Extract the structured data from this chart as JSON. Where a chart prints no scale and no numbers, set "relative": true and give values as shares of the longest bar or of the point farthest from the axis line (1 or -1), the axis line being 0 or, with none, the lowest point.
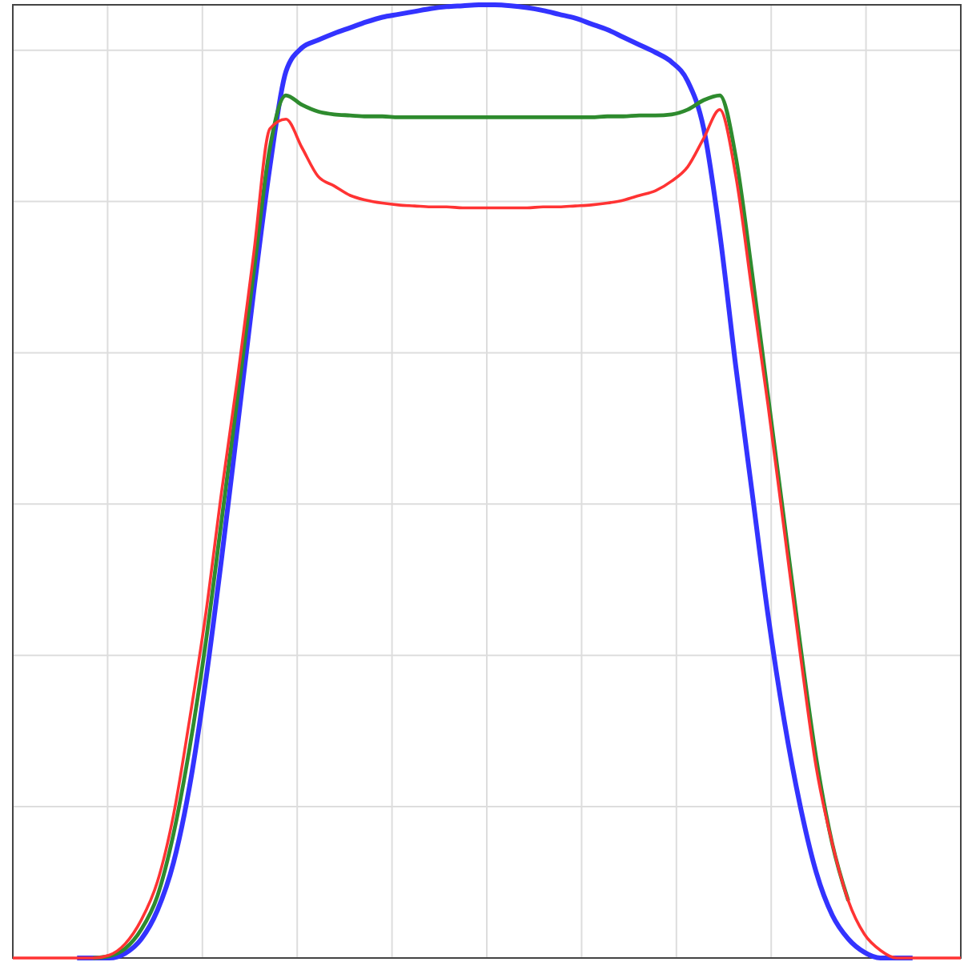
{
  "chart_data": {
    "type": "line",
    "relative": true,
    "grid": true,
    "line_style": "solid",
    "categories": [
      null,
      null,
      null,
      null,
      null,
      null,
      null,
      null,
      null,
      null,
      null,
      null,
      null,
      null,
      null,
      null,
      null,
      null,
      null,
      null,
      null,
      null,
      null,
      null,
      null,
      null,
      null,
      null,
      null,
      null,
      null,
      null,
      null,
      null,
      null,
      null,
      null,
      null,
      null,
      null,
      null,
      null,
      null,
      null,
      null,
      null,
      null,
      null,
      null,
      null,
      null,
      null,
      null,
      null,
      null,
      null,
      null,
      null,
      null,
      null
    ],
    "series": [
      {
        "color": "#3333ff",
        "values": [
          null,
          null,
          null,
          null,
          0,
          0,
          0,
          0.005,
          0.02,
          0.05,
          0.1,
          0.18,
          0.29,
          0.42,
          0.56,
          0.7,
          0.83,
          0.93,
          0.955,
          0.963,
          0.97,
          0.976,
          0.982,
          0.987,
          0.99,
          0.993,
          0.996,
          0.998,
          0.999,
          1,
          1,
          0.999,
          0.997,
          0.994,
          0.99,
          0.986,
          0.98,
          0.974,
          0.966,
          0.958,
          0.95,
          0.94,
          0.92,
          0.87,
          0.76,
          0.62,
          0.49,
          0.36,
          0.25,
          0.16,
          0.09,
          0.045,
          0.02,
          0.006,
          0,
          0,
          0,
          null,
          null,
          null
        ]
      },
      {
        "color": "#2e8b2e",
        "values": [
          null,
          null,
          null,
          null,
          null,
          0,
          0.002,
          0.01,
          0.03,
          0.065,
          0.13,
          0.22,
          0.33,
          0.46,
          0.59,
          0.72,
          0.85,
          0.905,
          0.895,
          0.888,
          0.885,
          0.884,
          0.883,
          0.883,
          0.882,
          0.882,
          0.882,
          0.882,
          0.882,
          0.882,
          0.882,
          0.882,
          0.882,
          0.882,
          0.882,
          0.882,
          0.882,
          0.883,
          0.883,
          0.884,
          0.884,
          0.885,
          0.89,
          0.9,
          0.905,
          0.84,
          0.72,
          0.59,
          0.46,
          0.33,
          0.21,
          0.12,
          0.06,
          null,
          null,
          null,
          null,
          null,
          null,
          null
        ]
      },
      {
        "color": "#ff3333",
        "values": [
          0,
          0,
          0,
          0,
          0,
          0,
          0.003,
          0.015,
          0.04,
          0.08,
          0.15,
          0.25,
          0.36,
          0.49,
          0.61,
          0.74,
          0.87,
          0.88,
          0.85,
          0.82,
          0.81,
          0.8,
          0.795,
          0.792,
          0.79,
          0.789,
          0.788,
          0.788,
          0.787,
          0.787,
          0.787,
          0.787,
          0.787,
          0.788,
          0.788,
          0.789,
          0.79,
          0.792,
          0.795,
          0.8,
          0.805,
          0.815,
          0.83,
          0.86,
          0.89,
          0.82,
          0.7,
          0.58,
          0.45,
          0.32,
          0.2,
          0.12,
          0.06,
          0.025,
          0.008,
          0,
          0,
          0,
          0,
          0
        ]
      }
    ]
  }
}
